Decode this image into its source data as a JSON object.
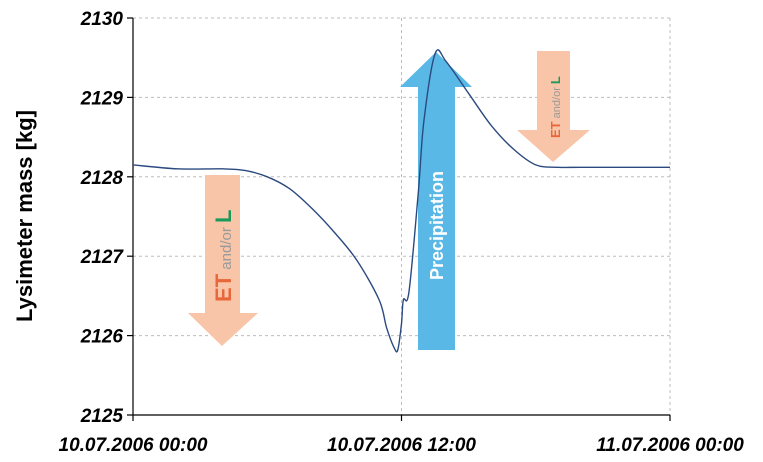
{
  "chart_data": {
    "type": "line",
    "ylabel": "Lysimeter mass [kg]",
    "xlabel": "",
    "title": "",
    "ylim": [
      2125,
      2130
    ],
    "yticks": [
      "2125",
      "2126",
      "2127",
      "2128",
      "2129",
      "2130"
    ],
    "xlim_hours": [
      0,
      24
    ],
    "xticks": [
      "10.07.2006 00:00",
      "10.07.2006 12:00",
      "11.07.2006 00:00"
    ],
    "grid": true,
    "series": [
      {
        "x": [
          "10.07.2006 00:00",
          "10.07.2006 02:00",
          "10.07.2006 04:00",
          "10.07.2006 05:00",
          "10.07.2006 06:00",
          "10.07.2006 07:00",
          "10.07.2006 08:00",
          "10.07.2006 09:00",
          "10.07.2006 10:00",
          "10.07.2006 11:00",
          "10.07.2006 11:20",
          "10.07.2006 11:40",
          "10.07.2006 11:50",
          "10.07.2006 12:00",
          "10.07.2006 12:05",
          "10.07.2006 12:20",
          "10.07.2006 12:45",
          "10.07.2006 13:00",
          "10.07.2006 13:30",
          "10.07.2006 14:00",
          "10.07.2006 15:00",
          "10.07.2006 16:00",
          "10.07.2006 17:00",
          "10.07.2006 18:00",
          "10.07.2006 19:00",
          "10.07.2006 20:00",
          "10.07.2006 22:00",
          "11.07.2006 00:00"
        ],
        "y": [
          2128.15,
          2128.1,
          2128.1,
          2128.08,
          2128.0,
          2127.85,
          2127.6,
          2127.3,
          2126.95,
          2126.45,
          2126.1,
          2125.85,
          2125.82,
          2126.15,
          2126.45,
          2126.55,
          2127.8,
          2128.7,
          2129.55,
          2129.45,
          2129.05,
          2128.65,
          2128.35,
          2128.15,
          2128.12,
          2128.12,
          2128.12,
          2128.12
        ]
      }
    ],
    "annotations": [
      {
        "type": "arrow-down",
        "color": "#f8c5a8",
        "text_parts": [
          "ET",
          " and/or ",
          "L"
        ],
        "position": "left"
      },
      {
        "type": "arrow-up",
        "color": "#5ab8e6",
        "text": "Precipitation",
        "position": "center"
      },
      {
        "type": "arrow-down",
        "color": "#f8c5a8",
        "text_parts": [
          "ET",
          " and/or ",
          "L"
        ],
        "position": "upper-right"
      }
    ],
    "colors": {
      "line": "#2b4a80",
      "et": "#e8663a",
      "andor": "#9a9a9a",
      "l": "#1a9a5a"
    }
  }
}
